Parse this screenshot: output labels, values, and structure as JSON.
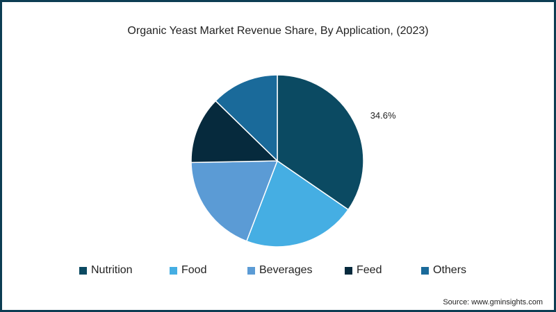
{
  "chart_data": {
    "type": "pie",
    "title": "Organic Yeast Market Revenue Share, By Application, (2023)",
    "categories": [
      "Nutrition",
      "Food",
      "Beverages",
      "Feed",
      "Others"
    ],
    "values": [
      34.6,
      21.2,
      18.9,
      12.6,
      12.7
    ],
    "colors": [
      "#0b4a62",
      "#45aee3",
      "#5b9bd5",
      "#062a3d",
      "#1a6a9a"
    ],
    "data_labels": [
      "34.6%"
    ],
    "legend": "bottom"
  },
  "source": "Source: www.gminsights.com"
}
